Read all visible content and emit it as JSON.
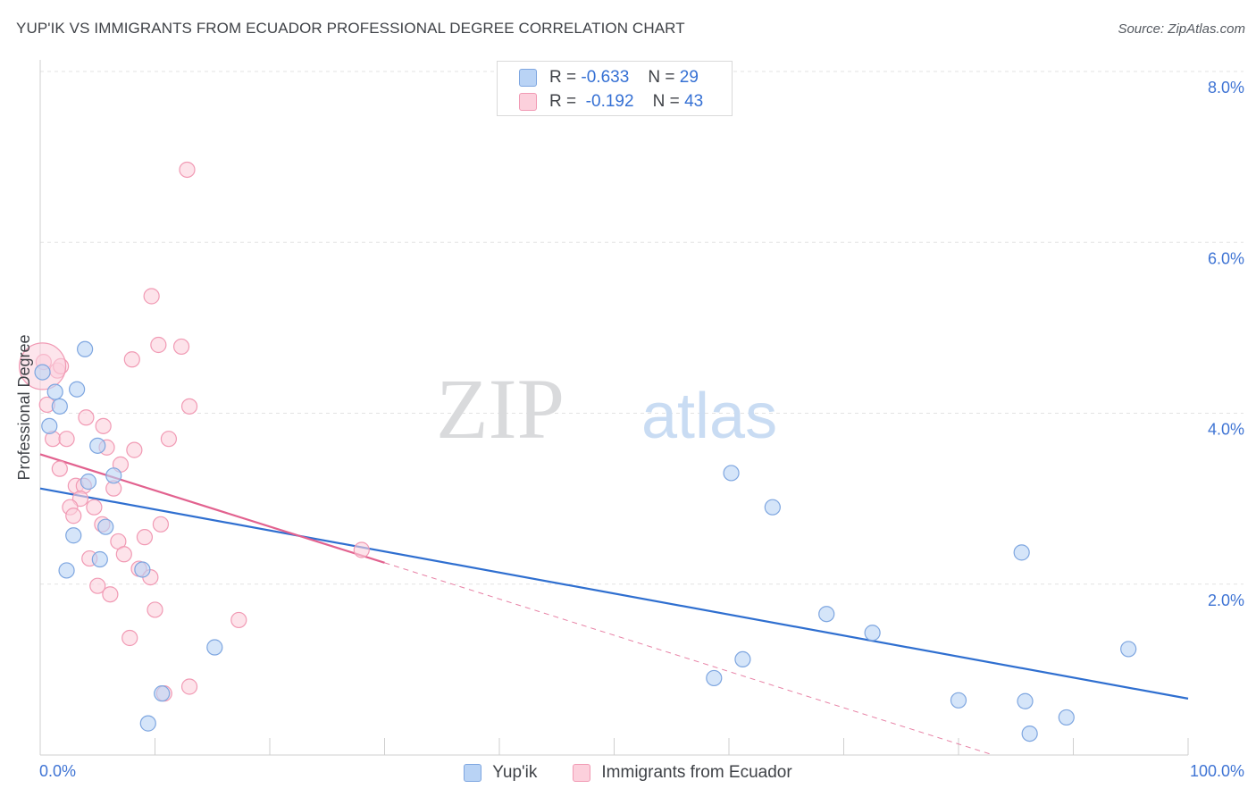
{
  "title": "YUP'IK VS IMMIGRANTS FROM ECUADOR PROFESSIONAL DEGREE CORRELATION CHART",
  "source": "Source: ZipAtlas.com",
  "watermark": {
    "zip": "ZIP",
    "atlas": "atlas"
  },
  "stats": {
    "rows": [
      {
        "r_label": "R =",
        "r_value": "-0.633",
        "n_label": "N =",
        "n_value": "29"
      },
      {
        "r_label": "R =",
        "r_value": "-0.192",
        "n_label": "N =",
        "n_value": "43"
      }
    ]
  },
  "legend": {
    "items": [
      "Yup'ik",
      "Immigrants from Ecuador"
    ]
  },
  "colors": {
    "blue_fill": "#b9d3f5",
    "blue_stroke": "#7ea6e0",
    "blue_line": "#2f6fd0",
    "pink_fill": "#fcd0dc",
    "pink_stroke": "#f19ab4",
    "pink_line": "#e2628f",
    "tick_label": "#3f74d4"
  },
  "chart_data": {
    "type": "scatter",
    "xlabel": "",
    "ylabel": "Professional Degree",
    "xlim": [
      0,
      100
    ],
    "ylim": [
      0,
      8
    ],
    "x_tick_labels": [
      "0.0%",
      "100.0%"
    ],
    "y_ticks": [
      2,
      4,
      6,
      8
    ],
    "y_tick_labels": [
      "2.0%",
      "4.0%",
      "6.0%",
      "8.0%"
    ],
    "grid": true,
    "legend_position": "bottom",
    "series": [
      {
        "name": "Yup'ik",
        "color": "#7ea6e0",
        "points": [
          [
            0.2,
            4.48
          ],
          [
            1.3,
            4.25
          ],
          [
            1.7,
            4.08
          ],
          [
            0.8,
            3.85
          ],
          [
            3.2,
            4.28
          ],
          [
            3.9,
            4.75
          ],
          [
            5.0,
            3.62
          ],
          [
            4.2,
            3.2
          ],
          [
            6.4,
            3.27
          ],
          [
            2.9,
            2.57
          ],
          [
            5.7,
            2.67
          ],
          [
            2.3,
            2.16
          ],
          [
            5.2,
            2.29
          ],
          [
            8.9,
            2.17
          ],
          [
            10.6,
            0.72
          ],
          [
            9.4,
            0.37
          ],
          [
            15.2,
            1.26
          ],
          [
            60.2,
            3.3
          ],
          [
            63.8,
            2.9
          ],
          [
            58.7,
            0.9
          ],
          [
            61.2,
            1.12
          ],
          [
            85.5,
            2.37
          ],
          [
            68.5,
            1.65
          ],
          [
            72.5,
            1.43
          ],
          [
            80.0,
            0.64
          ],
          [
            85.8,
            0.63
          ],
          [
            86.2,
            0.25
          ],
          [
            89.4,
            0.44
          ],
          [
            94.8,
            1.24
          ]
        ],
        "trend": {
          "x": [
            0,
            100
          ],
          "y": [
            3.12,
            0.66
          ]
        }
      },
      {
        "name": "Immigrants from Ecuador",
        "color": "#f19ab4",
        "points": [
          [
            0.3,
            4.6
          ],
          [
            1.5,
            4.5
          ],
          [
            1.8,
            4.55
          ],
          [
            0.6,
            4.1
          ],
          [
            1.1,
            3.7
          ],
          [
            2.3,
            3.7
          ],
          [
            1.7,
            3.35
          ],
          [
            4.0,
            3.95
          ],
          [
            5.5,
            3.85
          ],
          [
            5.8,
            3.6
          ],
          [
            7.0,
            3.4
          ],
          [
            8.2,
            3.57
          ],
          [
            6.4,
            3.12
          ],
          [
            3.1,
            3.15
          ],
          [
            3.8,
            3.15
          ],
          [
            3.5,
            3.0
          ],
          [
            2.6,
            2.9
          ],
          [
            2.9,
            2.8
          ],
          [
            4.7,
            2.9
          ],
          [
            5.4,
            2.7
          ],
          [
            6.8,
            2.5
          ],
          [
            7.3,
            2.35
          ],
          [
            9.1,
            2.55
          ],
          [
            10.5,
            2.7
          ],
          [
            4.3,
            2.3
          ],
          [
            8.6,
            2.18
          ],
          [
            9.6,
            2.08
          ],
          [
            5.0,
            1.98
          ],
          [
            6.1,
            1.88
          ],
          [
            10.0,
            1.7
          ],
          [
            7.8,
            1.37
          ],
          [
            11.2,
            3.7
          ],
          [
            8.0,
            4.63
          ],
          [
            10.3,
            4.8
          ],
          [
            12.3,
            4.78
          ],
          [
            9.7,
            5.37
          ],
          [
            13.0,
            4.08
          ],
          [
            17.3,
            1.58
          ],
          [
            13.0,
            0.8
          ],
          [
            10.8,
            0.72
          ],
          [
            12.8,
            6.85
          ],
          [
            28.0,
            2.4
          ],
          [
            0.2,
            4.55
          ]
        ],
        "trend": {
          "x": [
            0,
            30
          ],
          "y": [
            3.52,
            2.25
          ]
        },
        "trend_extension": {
          "x": [
            30,
            100
          ],
          "y": [
            2.25,
            -0.72
          ]
        }
      }
    ]
  }
}
